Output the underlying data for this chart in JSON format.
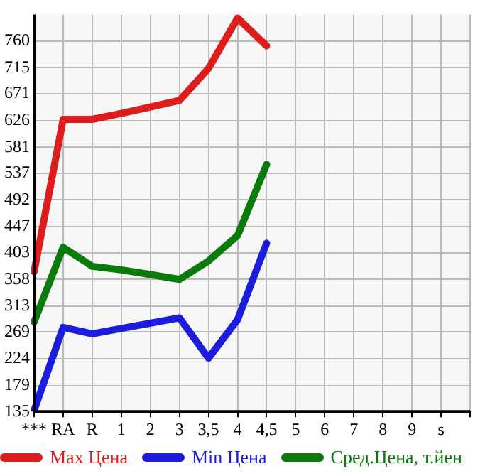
{
  "chart_data": {
    "type": "line",
    "categories": [
      "***",
      "RA",
      "R",
      "1",
      "2",
      "3",
      "3,5",
      "4",
      "4,5",
      "5",
      "6",
      "7",
      "8",
      "9",
      "s",
      null
    ],
    "series": [
      {
        "name": "Max Цена",
        "color": "#dd1c1c",
        "values": [
          371,
          628,
          628,
          638,
          649,
          660,
          714,
          799,
          752,
          null,
          null,
          null,
          null,
          null,
          null,
          null
        ]
      },
      {
        "name": "Min Цена",
        "color": "#1c1cdd",
        "values": [
          137,
          277,
          266,
          275,
          284,
          293,
          225,
          290,
          419,
          null,
          null,
          null,
          null,
          null,
          null,
          null
        ]
      },
      {
        "name": "Сред.Цена, т.йен",
        "color": "#0a7a0a",
        "values": [
          286,
          412,
          380,
          374,
          366,
          358,
          389,
          432,
          552,
          null,
          null,
          null,
          null,
          null,
          null,
          null
        ]
      }
    ],
    "ylim": [
      135,
      805
    ],
    "yticks": [
      135,
      179,
      224,
      269,
      313,
      358,
      403,
      447,
      492,
      537,
      581,
      626,
      671,
      715,
      760
    ],
    "grid": true,
    "legend": "bottom",
    "marker": "none",
    "line_style": "solid"
  }
}
